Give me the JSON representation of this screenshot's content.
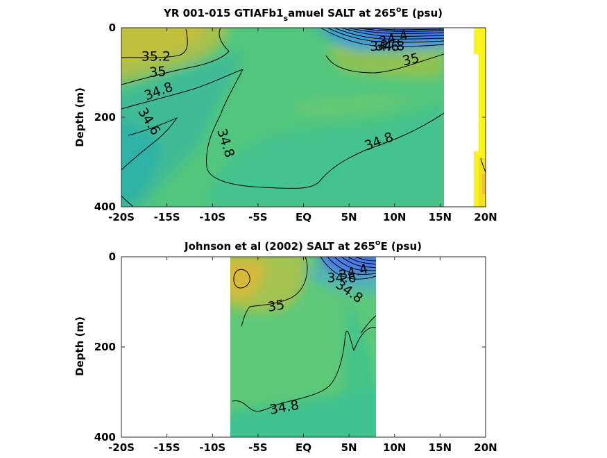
{
  "chart_data": [
    {
      "type": "contour",
      "title": "YR 001-015 GTIAFb1_samuel SALT at 265°E (psu)",
      "title_parts": {
        "pre": "YR 001-015 GTIAFb1",
        "sub": "s",
        "mid": "amuel SALT at 265",
        "sup": "o",
        "post": "E (psu)"
      },
      "xlabel": "",
      "ylabel": "Depth (m)",
      "xlim": [
        -20,
        20
      ],
      "ylim": [
        400,
        0
      ],
      "x_ticks": [
        -20,
        -15,
        -10,
        -5,
        0,
        5,
        10,
        15,
        20
      ],
      "x_tick_labels": [
        "-20S",
        "-15S",
        "-10S",
        "-5S",
        "EQ",
        "5N",
        "10N",
        "15N",
        "20N"
      ],
      "y_ticks": [
        0,
        200,
        400
      ],
      "y_tick_labels": [
        "0",
        "200",
        "400"
      ],
      "data_extent_lat": [
        -20,
        15.5
      ],
      "colormap": "parula",
      "contour_labels": [
        {
          "text": "35.2",
          "lat": -16.2,
          "depth": 65
        },
        {
          "text": "35",
          "lat": -16.0,
          "depth": 100
        },
        {
          "text": "34.8",
          "lat": -15.9,
          "depth": 143
        },
        {
          "text": "34.6",
          "lat": -17.0,
          "depth": 210
        },
        {
          "text": "34.8",
          "lat": -8.6,
          "depth": 258
        },
        {
          "text": "34.8",
          "lat": 8.3,
          "depth": 255
        },
        {
          "text": "35",
          "lat": 11.8,
          "depth": 72
        },
        {
          "text": "34.8",
          "lat": 9.5,
          "depth": 42
        },
        {
          "text": "34.6",
          "lat": 8.9,
          "depth": 43
        },
        {
          "text": "34.4",
          "lat": 9.9,
          "depth": 25
        }
      ]
    },
    {
      "type": "contour",
      "title": "Johnson et al (2002) SALT at 265°E (psu)",
      "title_parts": {
        "pre": "Johnson et al (2002) SALT at 265",
        "sup": "o",
        "post": "E (psu)"
      },
      "xlabel": "",
      "ylabel": "Depth (m)",
      "xlim": [
        -20,
        20
      ],
      "ylim": [
        400,
        0
      ],
      "x_ticks": [
        -20,
        -15,
        -10,
        -5,
        0,
        5,
        10,
        15,
        20
      ],
      "x_tick_labels": [
        "-20S",
        "-15S",
        "-10S",
        "-5S",
        "EQ",
        "5N",
        "10N",
        "15N",
        "20N"
      ],
      "y_ticks": [
        0,
        200,
        400
      ],
      "y_tick_labels": [
        "0",
        "200",
        "400"
      ],
      "data_extent_lat": [
        -8,
        8
      ],
      "colormap": "parula",
      "contour_labels": [
        {
          "text": "35",
          "lat": -3.0,
          "depth": 110
        },
        {
          "text": "34.8",
          "lat": -2.1,
          "depth": 335
        },
        {
          "text": "34.6",
          "lat": 4.2,
          "depth": 48
        },
        {
          "text": "34.8",
          "lat": 5.0,
          "depth": 78
        },
        {
          "text": "34.4",
          "lat": 5.5,
          "depth": 35
        }
      ]
    }
  ]
}
